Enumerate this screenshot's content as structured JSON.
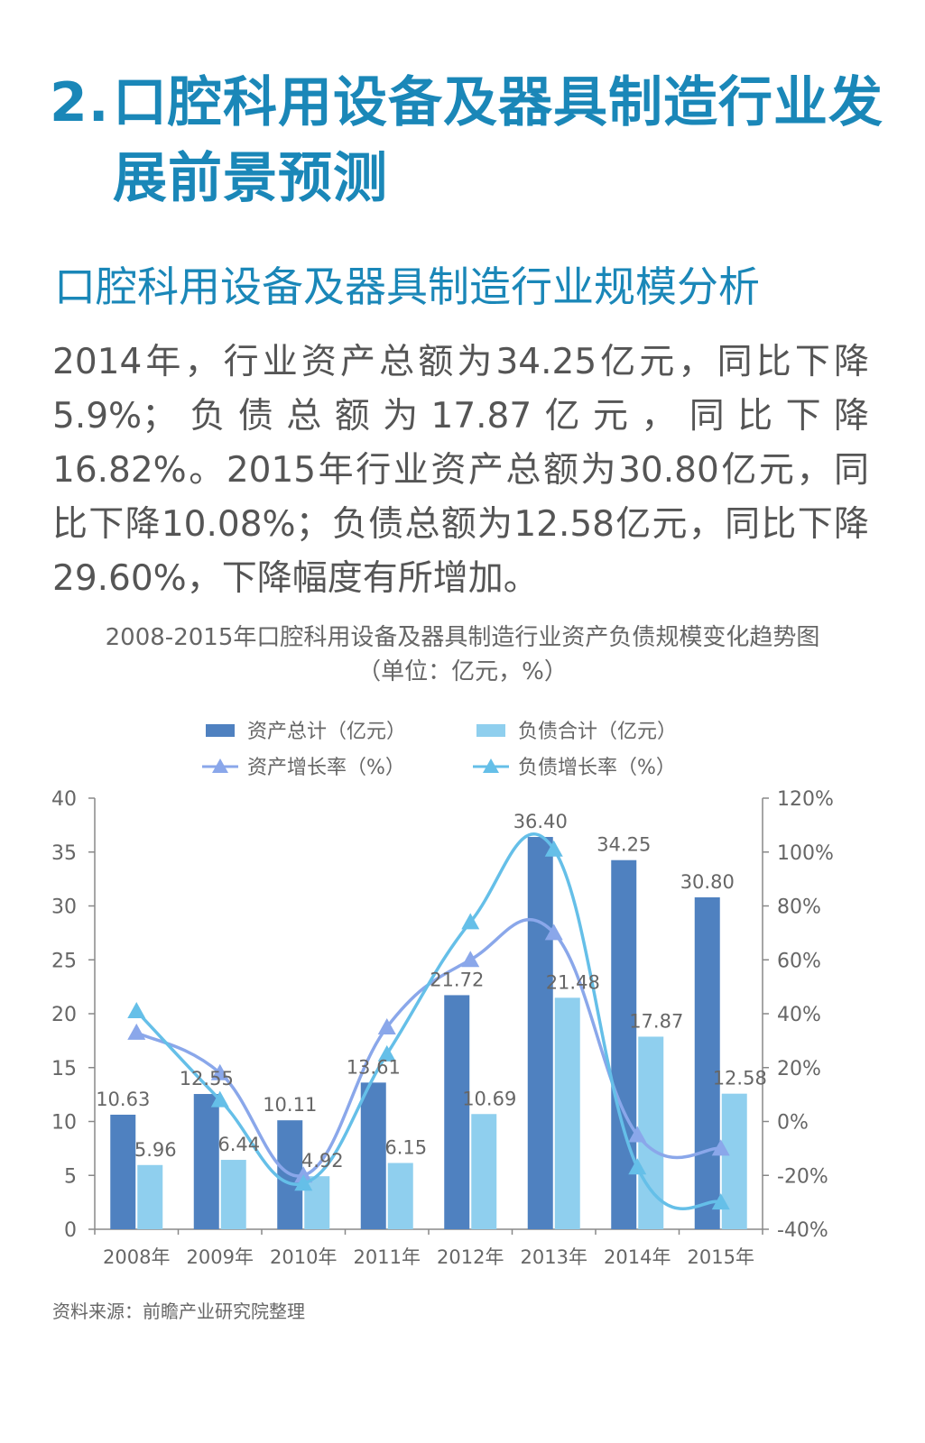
{
  "heading": {
    "number": "2.",
    "line1": "口腔科用设备及器具制造行业发",
    "line2": "展前景预测"
  },
  "subheading": "口腔科用设备及器具制造行业规模分析",
  "paragraph": "2014年，行业资产总额为34.25亿元，同比下降5.9%；负债总额为17.87亿元，同比下降16.82%。2015年行业资产总额为30.80亿元，同比下降10.08%；负债总额为12.58亿元，同比下降29.60%，下降幅度有所增加。",
  "chart_title": {
    "line1": "2008-2015年口腔科用设备及器具制造行业资产负债规模变化趋势图",
    "line2": "（单位：亿元，%）"
  },
  "source": "资料来源：前瞻产业研究院整理",
  "colors": {
    "heading": "#1a87b8",
    "asset_bar": "#4f81c0",
    "debt_bar": "#8fcfee",
    "asset_growth": "#8aa7ea",
    "debt_growth": "#65bfe8",
    "axis": "#888888"
  },
  "chart_data": {
    "type": "bar",
    "categories": [
      "2008年",
      "2009年",
      "2010年",
      "2011年",
      "2012年",
      "2013年",
      "2014年",
      "2015年"
    ],
    "series": [
      {
        "name": "资产总计（亿元）",
        "type": "bar",
        "axis": "left",
        "values": [
          10.63,
          12.55,
          10.11,
          13.61,
          21.72,
          36.4,
          34.25,
          30.8
        ],
        "labels": [
          "10.63",
          "12.55",
          "10.11",
          "13.61",
          "21.72",
          "36.40",
          "34.25",
          "30.80"
        ]
      },
      {
        "name": "负债合计（亿元）",
        "type": "bar",
        "axis": "left",
        "values": [
          5.96,
          6.44,
          4.92,
          6.15,
          10.69,
          21.48,
          17.87,
          12.58
        ],
        "labels": [
          "5.96",
          "6.44",
          "4.92",
          "6.15",
          "10.69",
          "21.48",
          "17.87",
          "12.58"
        ]
      },
      {
        "name": "资产增长率（%）",
        "type": "line",
        "axis": "right",
        "values": [
          33,
          18,
          -20,
          35,
          60,
          70,
          -5,
          -10
        ]
      },
      {
        "name": "负债增长率（%）",
        "type": "line",
        "axis": "right",
        "values": [
          41,
          8,
          -23,
          25,
          74,
          101,
          -17,
          -30
        ]
      }
    ],
    "y_left": {
      "min": 0,
      "max": 40,
      "ticks": [
        "0",
        "5",
        "10",
        "15",
        "20",
        "25",
        "30",
        "35",
        "40"
      ]
    },
    "y_right": {
      "min": -40,
      "max": 120,
      "ticks": [
        "-40%",
        "-20%",
        "0%",
        "20%",
        "40%",
        "60%",
        "80%",
        "100%",
        "120%"
      ]
    },
    "legend_position": "top",
    "grid": false
  }
}
